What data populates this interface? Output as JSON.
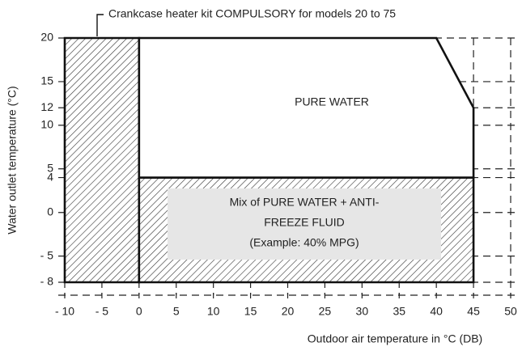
{
  "chart_data": {
    "type": "envelope",
    "annotation": "Crankcase heater kit COMPULSORY for models 20 to 75",
    "x_label": "Outdoor air temperature in °C (DB)",
    "y_label": "Water outlet temperature (°C)",
    "region_labels": {
      "pure": "PURE WATER",
      "mix": [
        "Mix of PURE WATER + ANTI-",
        "FREEZE FLUID",
        "(Example: 40% MPG)"
      ]
    },
    "xlim": [
      -10,
      50
    ],
    "ylim": [
      -8,
      20
    ],
    "xticks": [
      {
        "value": -10,
        "label": "- 10"
      },
      {
        "value": -5,
        "label": "- 5"
      },
      0,
      5,
      10,
      15,
      20,
      25,
      30,
      35,
      40,
      45,
      50
    ],
    "yticks": [
      {
        "value": -8,
        "label": "- 8"
      },
      {
        "value": -5,
        "label": "- 5"
      },
      0,
      4,
      5,
      10,
      12,
      15,
      20
    ],
    "grid": true,
    "areas": [
      {
        "x": [
          -10,
          0,
          0,
          -10
        ],
        "y": [
          -8,
          -8,
          20,
          20
        ],
        "fill": "hatch"
      },
      {
        "x": [
          0,
          45,
          45,
          0
        ],
        "y": [
          -8,
          -8,
          4,
          4
        ],
        "fill": "hatch"
      },
      {
        "x": [
          0,
          0,
          40,
          45,
          45
        ],
        "y": [
          4,
          20,
          20,
          12,
          4
        ],
        "fill": "#ffffff"
      }
    ]
  }
}
